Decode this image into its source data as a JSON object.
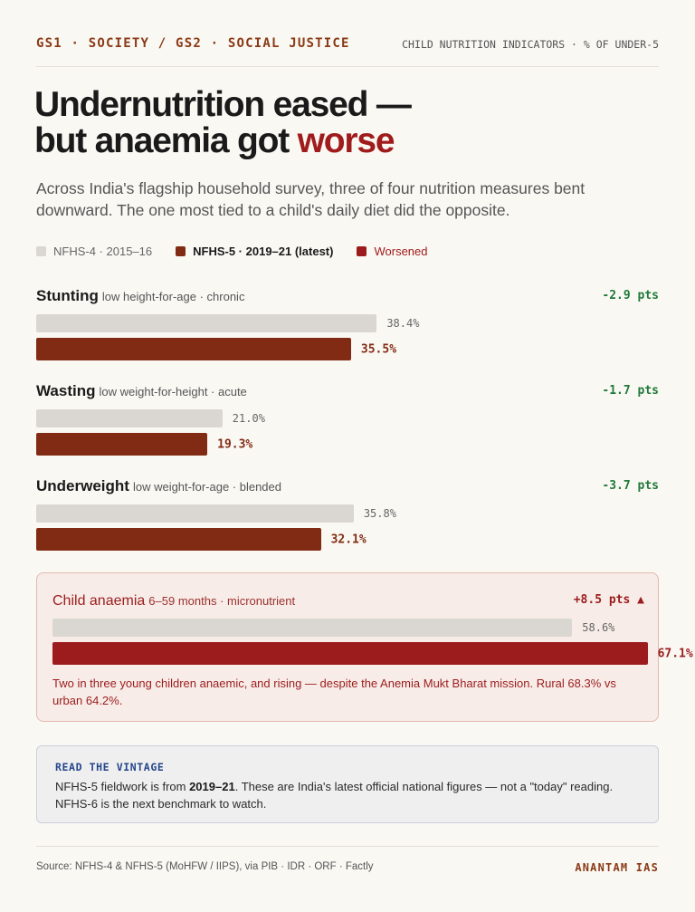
{
  "header": {
    "kicker": "GS1 · SOCIETY / GS2 · SOCIAL JUSTICE",
    "topic": "CHILD NUTRITION INDICATORS · % OF UNDER-5"
  },
  "headline": {
    "line1": "Undernutrition eased —",
    "line2_prefix": "but anaemia got ",
    "line2_accent": "worse"
  },
  "dek": "Across India's flagship household survey, three of four nutrition measures bent downward. The one most tied to a child's daily diet did the opposite.",
  "legend": {
    "old_label": "NFHS-4 · 2015–16",
    "new_label": "NFHS-5 · 2019–21 (latest)",
    "worse_label": "Worsened"
  },
  "colors": {
    "old": "#dad7d2",
    "new": "#822b14",
    "worse": "#9c1c1e",
    "improve": "#1f7a3a",
    "accent": "#a01c1c"
  },
  "chart_data": {
    "type": "bar",
    "orientation": "horizontal",
    "unit": "% of under-5",
    "xlim": [
      0,
      70
    ],
    "series": [
      {
        "name": "NFHS-4 · 2015–16",
        "values": [
          38.4,
          21.0,
          35.8,
          58.6
        ]
      },
      {
        "name": "NFHS-5 · 2019–21 (latest)",
        "values": [
          35.5,
          19.3,
          32.1,
          67.1
        ]
      }
    ],
    "categories": [
      "Stunting",
      "Wasting",
      "Underweight",
      "Child anaemia"
    ],
    "metrics": [
      {
        "name": "Stunting",
        "sub": "low height-for-age · chronic",
        "old": 38.4,
        "new": 35.5,
        "old_label": "38.4%",
        "new_label": "35.5%",
        "delta": "-2.9 pts",
        "worsened": false
      },
      {
        "name": "Wasting",
        "sub": "low weight-for-height · acute",
        "old": 21.0,
        "new": 19.3,
        "old_label": "21.0%",
        "new_label": "19.3%",
        "delta": "-1.7 pts",
        "worsened": false
      },
      {
        "name": "Underweight",
        "sub": "low weight-for-age · blended",
        "old": 35.8,
        "new": 32.1,
        "old_label": "35.8%",
        "new_label": "32.1%",
        "delta": "-3.7 pts",
        "worsened": false
      },
      {
        "name": "Child anaemia",
        "sub": "6–59 months · micronutrient",
        "old": 58.6,
        "new": 67.1,
        "old_label": "58.6%",
        "new_label": "67.1%",
        "delta": "+8.5 pts ▲",
        "worsened": true
      }
    ]
  },
  "anaemia_note": "Two in three young children anaemic, and rising — despite the Anemia Mukt Bharat mission. Rural 68.3% vs urban 64.2%.",
  "vintage": {
    "title": "READ THE VINTAGE",
    "text_pre": "NFHS-5 fieldwork is from ",
    "text_bold": "2019–21",
    "text_post": ". These are India's latest official national figures — not a \"today\" reading. NFHS-6 is the next benchmark to watch."
  },
  "footer": {
    "source": "Source: NFHS-4 & NFHS-5 (MoHFW / IIPS), via PIB · IDR · ORF · Factly",
    "brand": "ANANTAM IAS"
  }
}
